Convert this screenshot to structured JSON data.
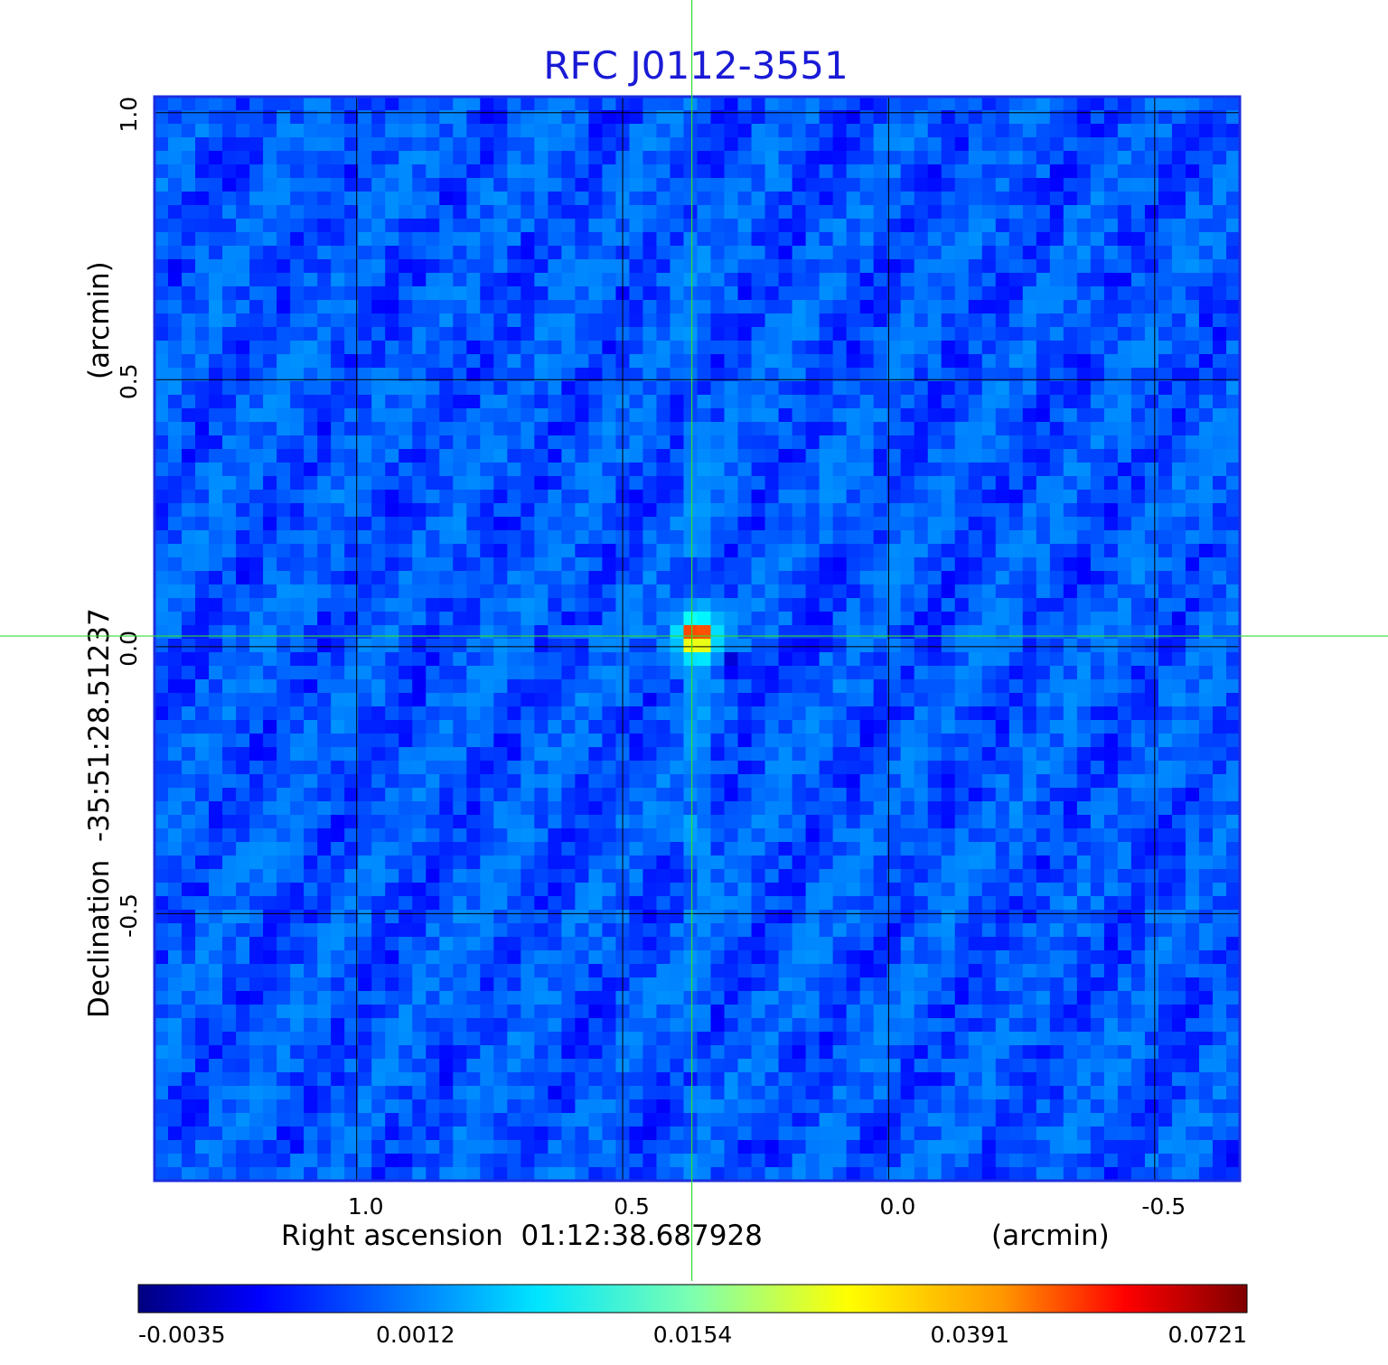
{
  "chart_data": {
    "type": "heatmap",
    "title": "RFC J0112-3551",
    "xlabel": "Right ascension  01:12:38.687928",
    "xunit": "(arcmin)",
    "ylabel": "Declination  -35:51:28.51237",
    "yunit": "(arcmin)",
    "xlim": [
      1.38,
      -0.66
    ],
    "ylim": [
      -1.0,
      1.03
    ],
    "x_ticks": [
      1.0,
      0.5,
      0.0,
      -0.5
    ],
    "x_tick_labels": [
      "1.0",
      "0.5",
      "0.0",
      "-0.5"
    ],
    "y_ticks": [
      1.0,
      0.5,
      0.0,
      -0.5
    ],
    "y_tick_labels": [
      "1.0",
      "0.5",
      "0.0",
      "-0.5"
    ],
    "grid": true,
    "crosshair": {
      "x": 0.37,
      "y": 0.02
    },
    "colorbar": {
      "colormap": "jet",
      "tick_labels": [
        "-0.0035",
        "0.0012",
        "0.0154",
        "0.0391",
        "0.0721"
      ],
      "min": -0.0035,
      "max": 0.0721
    },
    "background_level": 0.0005,
    "peak": {
      "x": 0.36,
      "y": 0.02,
      "value": 0.0721
    },
    "features": [
      {
        "x": 0.37,
        "y": 0.14,
        "value": -0.0025
      },
      {
        "x": 0.3,
        "y": -0.03,
        "value": -0.0028
      },
      {
        "x": 0.37,
        "y": -0.35,
        "value": 0.003
      }
    ]
  },
  "colors": {
    "title": "#1a1ad6",
    "crosshair": "#33dd33",
    "frame": "#1c2ee0",
    "grid": "#000000"
  }
}
